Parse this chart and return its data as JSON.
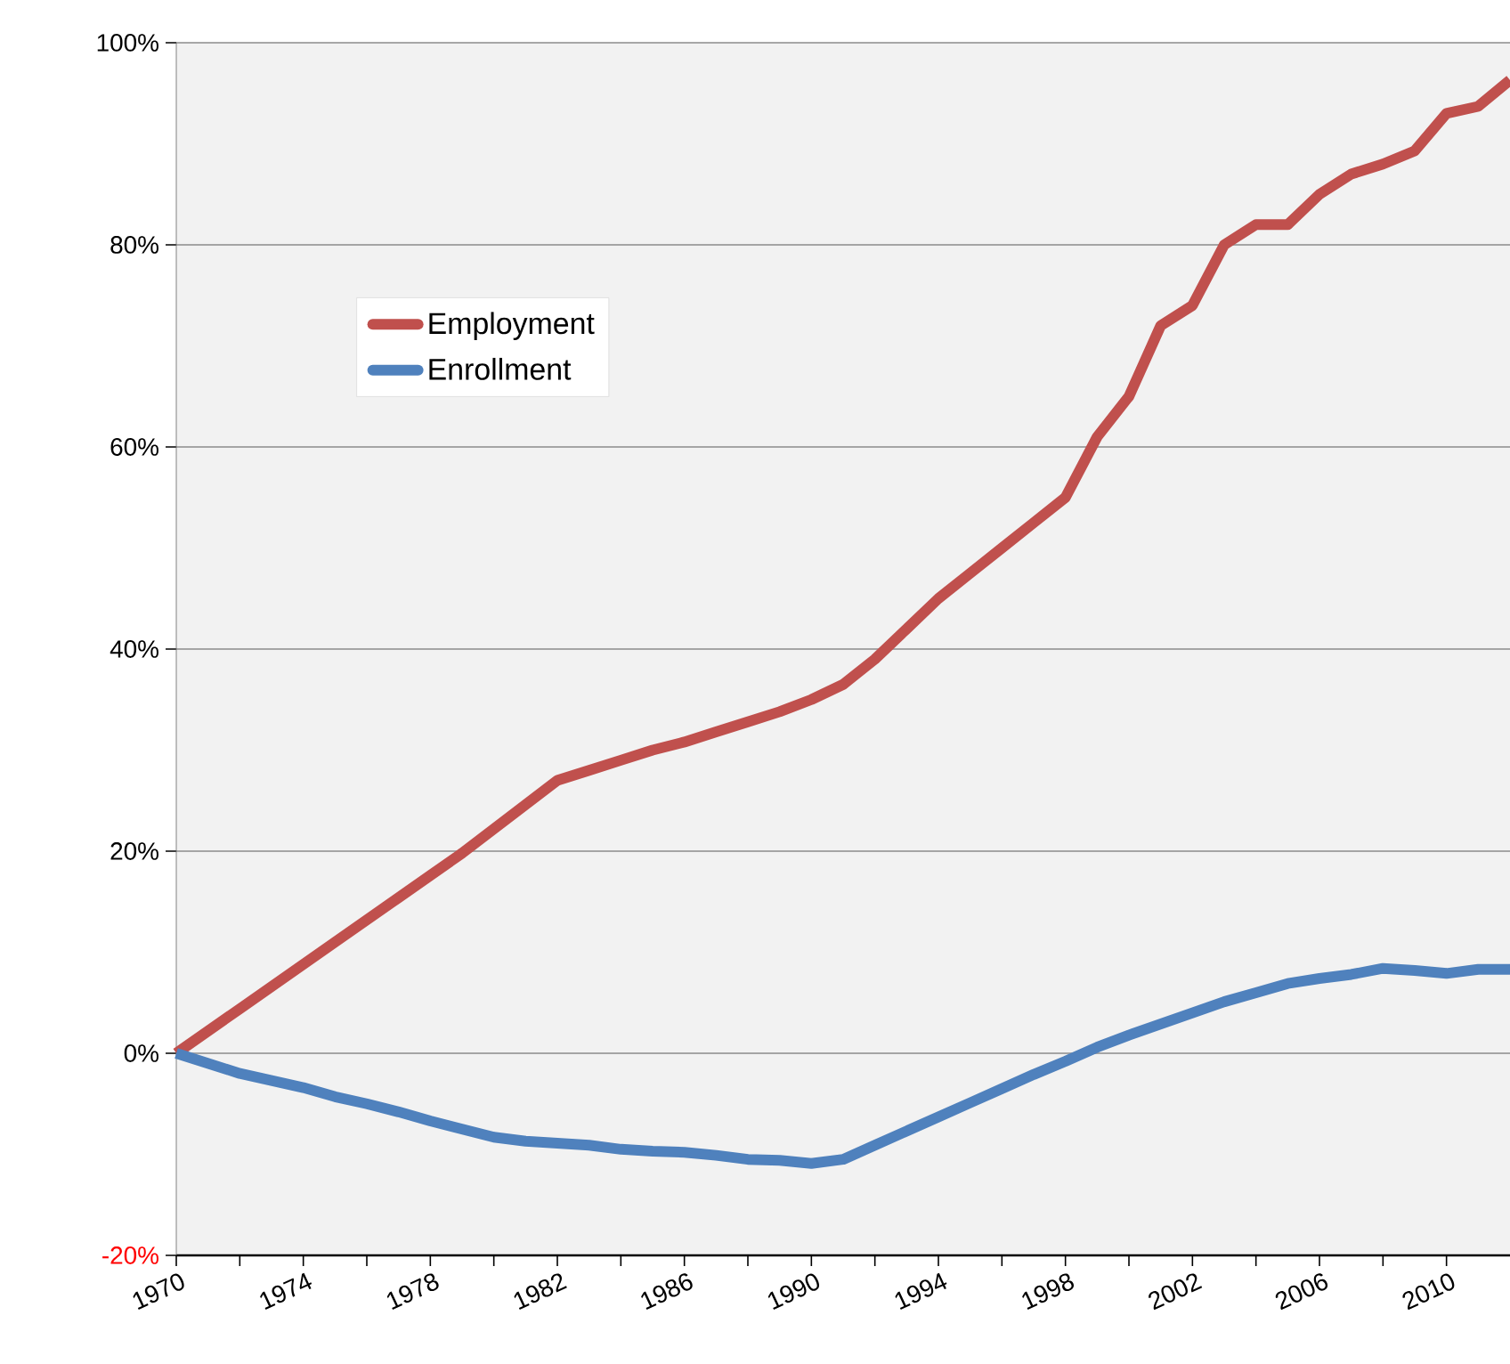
{
  "chart_data": {
    "type": "line",
    "x": [
      1970,
      1971,
      1972,
      1973,
      1974,
      1975,
      1976,
      1977,
      1978,
      1979,
      1980,
      1981,
      1982,
      1983,
      1984,
      1985,
      1986,
      1987,
      1988,
      1989,
      1990,
      1991,
      1992,
      1993,
      1994,
      1995,
      1996,
      1997,
      1998,
      1999,
      2000,
      2001,
      2002,
      2003,
      2004,
      2005,
      2006,
      2007,
      2008,
      2009,
      2010,
      2011,
      2012
    ],
    "series": [
      {
        "name": "Employment",
        "color": "#c0504d",
        "values": [
          0,
          2.2,
          4.4,
          6.6,
          8.8,
          11,
          13.2,
          15.4,
          17.6,
          19.8,
          22.2,
          24.6,
          27,
          28,
          29,
          30,
          30.8,
          31.8,
          32.8,
          33.8,
          35,
          36.5,
          39,
          42,
          45,
          47.5,
          50,
          52.5,
          55,
          61,
          65,
          72,
          74,
          80,
          82,
          82,
          85,
          87,
          88,
          89.3,
          93,
          93.7,
          96.3
        ]
      },
      {
        "name": "Enrollment",
        "color": "#4f81bd",
        "values": [
          0,
          -1,
          -2,
          -2.7,
          -3.4,
          -4.3,
          -5,
          -5.8,
          -6.7,
          -7.5,
          -8.3,
          -8.7,
          -8.9,
          -9.1,
          -9.5,
          -9.7,
          -9.8,
          -10.1,
          -10.5,
          -10.6,
          -10.9,
          -10.5,
          -9.1,
          -7.7,
          -6.3,
          -4.9,
          -3.5,
          -2.1,
          -0.8,
          0.6,
          1.8,
          2.9,
          4,
          5.1,
          6,
          6.9,
          7.4,
          7.8,
          8.4,
          8.2,
          7.9,
          8.3,
          8.3
        ]
      }
    ],
    "xlim": [
      1970,
      2012
    ],
    "xticks": [
      1970,
      {
        "value": 1972,
        "label": null
      },
      1974,
      {
        "value": 1976,
        "label": null
      },
      1978,
      {
        "value": 1980,
        "label": null
      },
      1982,
      {
        "value": 1984,
        "label": null
      },
      1986,
      {
        "value": 1988,
        "label": null
      },
      1990,
      {
        "value": 1992,
        "label": null
      },
      1994,
      {
        "value": 1996,
        "label": null
      },
      1998,
      {
        "value": 2000,
        "label": null
      },
      2002,
      {
        "value": 2004,
        "label": null
      },
      2006,
      {
        "value": 2008,
        "label": null
      },
      2010
    ],
    "ylim": [
      -20,
      100
    ],
    "yticks": [
      {
        "value": -20,
        "label": "-20%"
      },
      {
        "value": 0,
        "label": "0%"
      },
      {
        "value": 20,
        "label": "20%"
      },
      {
        "value": 40,
        "label": "40%"
      },
      {
        "value": 60,
        "label": "60%"
      },
      {
        "value": 80,
        "label": "80%"
      },
      {
        "value": 100,
        "label": "100%"
      }
    ],
    "grid": "y",
    "legend": "top left",
    "marker": "none",
    "line_style": "solid"
  }
}
